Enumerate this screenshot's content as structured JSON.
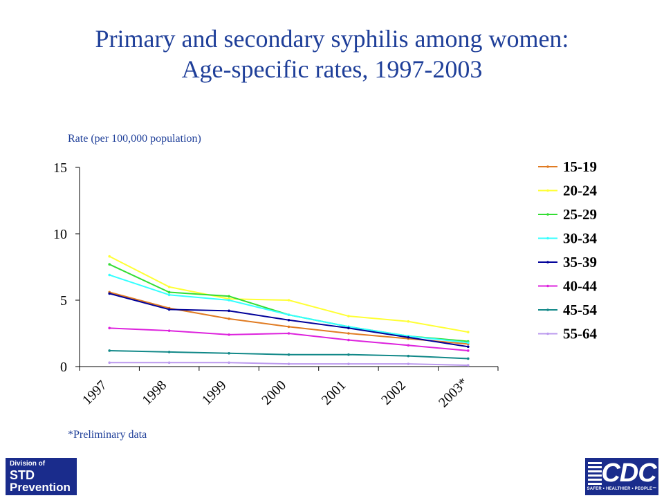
{
  "chart_data": {
    "type": "line",
    "title": "Primary and secondary syphilis among women: Age-specific rates, 1997-2003",
    "title_lines": [
      "Primary and secondary syphilis among women:",
      "Age-specific rates, 1997-2003"
    ],
    "ylabel": "Rate (per 100,000 population)",
    "xlabel": "",
    "categories": [
      "1997",
      "1998",
      "1999",
      "2000",
      "2001",
      "2002",
      "2003*"
    ],
    "ylim": [
      0,
      15
    ],
    "yticks": [
      0,
      5,
      10,
      15
    ],
    "grid": false,
    "legend_position": "right",
    "series": [
      {
        "name": "15-19",
        "color": "#e07b22",
        "values": [
          5.6,
          4.4,
          3.6,
          3.0,
          2.5,
          2.1,
          1.7
        ]
      },
      {
        "name": "20-24",
        "color": "#ffff33",
        "values": [
          8.3,
          6.0,
          5.1,
          5.0,
          3.8,
          3.4,
          2.6
        ]
      },
      {
        "name": "25-29",
        "color": "#33dd33",
        "values": [
          7.7,
          5.6,
          5.3,
          3.9,
          3.0,
          2.3,
          1.9
        ]
      },
      {
        "name": "30-34",
        "color": "#33ffff",
        "values": [
          6.9,
          5.4,
          5.0,
          3.9,
          3.0,
          2.3,
          1.8
        ]
      },
      {
        "name": "35-39",
        "color": "#000099",
        "values": [
          5.5,
          4.3,
          4.2,
          3.5,
          2.9,
          2.2,
          1.5
        ]
      },
      {
        "name": "40-44",
        "color": "#dd22dd",
        "values": [
          2.9,
          2.7,
          2.4,
          2.5,
          2.0,
          1.6,
          1.2
        ]
      },
      {
        "name": "45-54",
        "color": "#118888",
        "values": [
          1.2,
          1.1,
          1.0,
          0.9,
          0.9,
          0.8,
          0.6
        ]
      },
      {
        "name": "55-64",
        "color": "#bb99ee",
        "values": [
          0.3,
          0.3,
          0.3,
          0.2,
          0.2,
          0.2,
          0.1
        ]
      }
    ]
  },
  "footnote": "*Preliminary data",
  "logos": {
    "left": {
      "line1": "Division of",
      "line2": "STD",
      "line3": "Prevention"
    },
    "right": {
      "text": "CDC",
      "tagline": "SAFER • HEALTHIER • PEOPLE™"
    }
  }
}
